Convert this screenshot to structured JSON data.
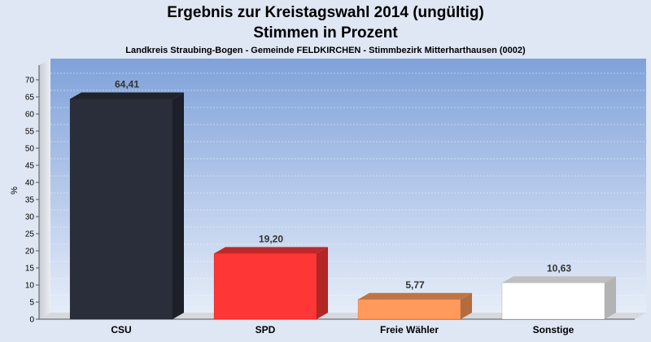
{
  "chart_data": {
    "type": "bar",
    "title": "Ergebnis zur Kreistagswahl 2014 (ungültig)",
    "title_line2": "Stimmen in Prozent",
    "subtitle": "Landkreis Straubing-Bogen - Gemeinde FELDKIRCHEN - Stimmbezirk Mitterharthausen (0002)",
    "xlabel": "",
    "ylabel": "%",
    "ylim": [
      0,
      70
    ],
    "yticks": [
      0,
      5,
      10,
      15,
      20,
      25,
      30,
      35,
      40,
      45,
      50,
      55,
      60,
      65,
      70
    ],
    "categories": [
      "CSU",
      "SPD",
      "Freie Wähler",
      "Sonstige"
    ],
    "values": [
      64.41,
      19.2,
      5.77,
      10.63
    ],
    "value_labels": [
      "64,41",
      "19,20",
      "5,77",
      "10,63"
    ],
    "colors": [
      "#2a2e3a",
      "#ff3636",
      "#ff9a5c",
      "#ffffff"
    ],
    "grid": true,
    "legend": "none"
  }
}
